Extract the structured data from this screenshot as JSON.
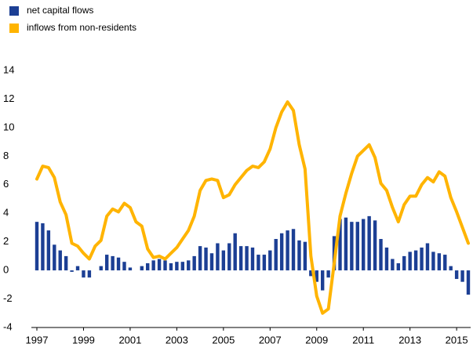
{
  "chart_data": {
    "type": "bar",
    "categories": [
      "1997",
      null,
      null,
      null,
      null,
      null,
      null,
      null,
      "1999",
      null,
      null,
      null,
      null,
      null,
      null,
      null,
      "2001",
      null,
      null,
      null,
      null,
      null,
      null,
      null,
      "2003",
      null,
      null,
      null,
      null,
      null,
      null,
      null,
      "2005",
      null,
      null,
      null,
      null,
      null,
      null,
      null,
      "2007",
      null,
      null,
      null,
      null,
      null,
      null,
      null,
      "2009",
      null,
      null,
      null,
      null,
      null,
      null,
      null,
      "2011",
      null,
      null,
      null,
      null,
      null,
      null,
      null,
      "2013",
      null,
      null,
      null,
      null,
      null,
      null,
      null,
      "2015",
      null,
      null
    ],
    "series": [
      {
        "name": "net capital flows",
        "color": "#1c3f94",
        "type": "bar",
        "values": [
          3.4,
          3.3,
          2.8,
          1.8,
          1.4,
          1.0,
          -0.1,
          0.3,
          -0.5,
          -0.5,
          0.0,
          0.3,
          1.1,
          1.0,
          0.9,
          0.6,
          0.2,
          0.0,
          0.3,
          0.5,
          0.7,
          0.8,
          0.7,
          0.5,
          0.6,
          0.6,
          0.7,
          1.0,
          1.7,
          1.6,
          1.2,
          1.9,
          1.4,
          1.9,
          2.6,
          1.7,
          1.7,
          1.6,
          1.1,
          1.1,
          1.4,
          2.2,
          2.6,
          2.8,
          2.9,
          2.1,
          2.0,
          -0.4,
          -0.8,
          -1.4,
          -0.5,
          2.4,
          3.6,
          3.7,
          3.4,
          3.4,
          3.6,
          3.8,
          3.5,
          2.2,
          1.6,
          0.8,
          0.5,
          1.0,
          1.3,
          1.4,
          1.6,
          1.9,
          1.3,
          1.2,
          1.1,
          0.3,
          -0.6,
          -0.8,
          -1.7
        ]
      },
      {
        "name": "inflows from non-residents",
        "color": "#ffb400",
        "type": "line",
        "values": [
          6.4,
          7.3,
          7.2,
          6.5,
          4.8,
          3.9,
          1.9,
          1.7,
          1.2,
          0.8,
          1.7,
          2.1,
          3.8,
          4.3,
          4.1,
          4.7,
          4.4,
          3.4,
          3.1,
          1.5,
          0.9,
          1.0,
          0.8,
          1.2,
          1.6,
          2.2,
          2.8,
          3.8,
          5.6,
          6.3,
          6.4,
          6.3,
          5.1,
          5.3,
          6.0,
          6.5,
          7.0,
          7.3,
          7.2,
          7.6,
          8.5,
          10.0,
          11.1,
          11.8,
          11.2,
          8.8,
          7.1,
          1.0,
          -1.8,
          -3.0,
          -2.7,
          0.5,
          3.8,
          5.4,
          6.8,
          8.0,
          8.4,
          8.8,
          7.9,
          6.1,
          5.6,
          4.4,
          3.4,
          4.6,
          5.2,
          5.2,
          6.0,
          6.5,
          6.2,
          6.9,
          6.6,
          5.1,
          4.1,
          3.0,
          1.9
        ]
      }
    ],
    "ylim": [
      -4,
      14
    ],
    "yticks": [
      -4,
      -2,
      0,
      2,
      4,
      6,
      8,
      10,
      12,
      14
    ],
    "legend": "top-left"
  }
}
